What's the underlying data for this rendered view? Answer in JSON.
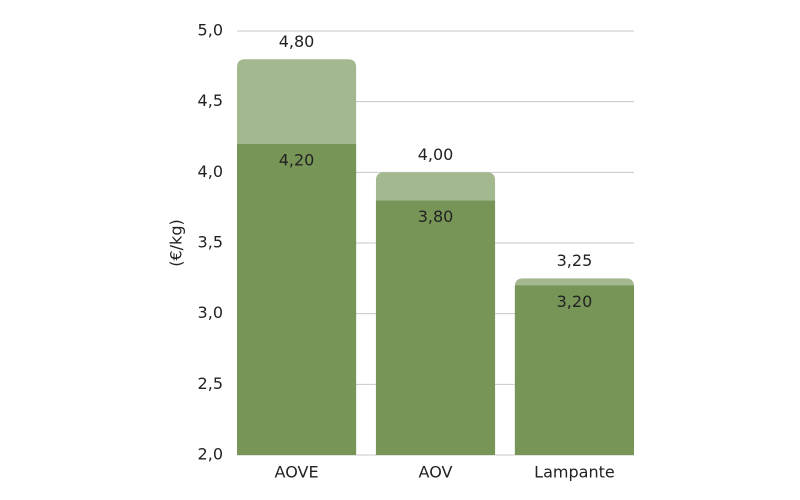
{
  "chart_data": {
    "type": "bar",
    "barmode": "overlay",
    "y_label": "(€/kg)",
    "categories": [
      "AOVE",
      "AOV",
      "Lampante"
    ],
    "series": [
      {
        "color": "#a3b88f",
        "values": [
          4.8,
          4.0,
          3.25
        ],
        "value_labels": [
          "4,80",
          "4,00",
          "3,25"
        ]
      },
      {
        "color": "#779557",
        "values": [
          4.2,
          3.8,
          3.2
        ],
        "value_labels": [
          "4,20",
          "3,80",
          "3,20"
        ]
      }
    ],
    "ylim": [
      2.0,
      5.0
    ],
    "yticks": [
      {
        "value": 2.0,
        "label": "2,0"
      },
      {
        "value": 2.5,
        "label": "2,5"
      },
      {
        "value": 3.0,
        "label": "3,0"
      },
      {
        "value": 3.5,
        "label": "3,5"
      },
      {
        "value": 4.0,
        "label": "4,0"
      },
      {
        "value": 4.5,
        "label": "4,5"
      },
      {
        "value": 5.0,
        "label": "5,0"
      }
    ],
    "grid": true
  }
}
